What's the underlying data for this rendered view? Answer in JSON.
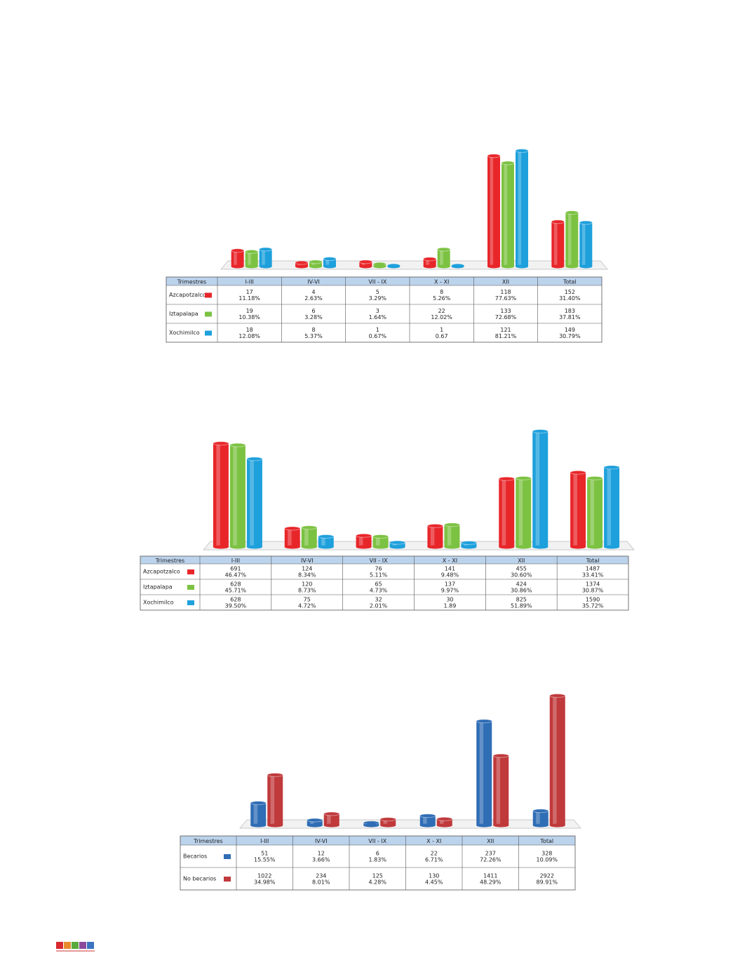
{
  "chart_data": [
    {
      "type": "bar",
      "header": "Trimestres",
      "categories": [
        "I-III",
        "IV-VI",
        "VII - IX",
        "X - XI",
        "XII",
        "Total"
      ],
      "series": [
        {
          "name": "Azcapotzalco",
          "color": "#e8262a",
          "counts": [
            17,
            4,
            5,
            8,
            118,
            152
          ],
          "values": [
            11.18,
            2.63,
            3.29,
            5.26,
            77.63,
            31.4
          ],
          "value_labels": [
            "11.18%",
            "2.63%",
            "3.29%",
            "5.26%",
            "77.63%",
            "31.40%"
          ]
        },
        {
          "name": "Iztapalapa",
          "color": "#7cc242",
          "counts": [
            19,
            6,
            3,
            22,
            133,
            183
          ],
          "values": [
            10.38,
            3.28,
            1.64,
            12.02,
            72.68,
            37.81
          ],
          "value_labels": [
            "10.38%",
            "3.28%",
            "1.64%",
            "12.02%",
            "72.68%",
            "37.81%"
          ]
        },
        {
          "name": "Xochimilco",
          "color": "#1ea0dc",
          "counts": [
            18,
            8,
            1,
            1,
            121,
            149
          ],
          "values": [
            12.08,
            5.37,
            0.67,
            0.67,
            81.21,
            30.79
          ],
          "value_labels": [
            "12.08%",
            "5.37%",
            "0.67%",
            "0.67",
            "81.21%",
            "30.79%"
          ]
        }
      ]
    },
    {
      "type": "bar",
      "header": "Trimestres",
      "categories": [
        "I-III",
        "IV-VI",
        "VII - IX",
        "X - XI",
        "XII",
        "Total"
      ],
      "series": [
        {
          "name": "Azcapotzalco",
          "color": "#e8262a",
          "counts": [
            691,
            124,
            76,
            141,
            455,
            1487
          ],
          "values": [
            46.47,
            8.34,
            5.11,
            9.48,
            30.6,
            33.41
          ],
          "value_labels": [
            "46.47%",
            "8.34%",
            "5.11%",
            "9.48%",
            "30.60%",
            "33.41%"
          ]
        },
        {
          "name": "Iztapalapa",
          "color": "#7cc242",
          "counts": [
            628,
            120,
            65,
            137,
            424,
            1374
          ],
          "values": [
            45.71,
            8.73,
            4.73,
            9.97,
            30.86,
            30.87
          ],
          "value_labels": [
            "45.71%",
            "8.73%",
            "4.73%",
            "9.97%",
            "30.86%",
            "30.87%"
          ]
        },
        {
          "name": "Xochimilco",
          "color": "#1ea0dc",
          "counts": [
            628,
            75,
            32,
            30,
            825,
            1590
          ],
          "values": [
            39.5,
            4.72,
            2.01,
            1.89,
            51.89,
            35.72
          ],
          "value_labels": [
            "39.50%",
            "4.72%",
            "2.01%",
            "1.89",
            "51.89%",
            "35.72%"
          ]
        }
      ]
    },
    {
      "type": "bar",
      "header": "Trimestres",
      "categories": [
        "I-III",
        "IV-VI",
        "VII - IX",
        "X - XI",
        "XII",
        "Total"
      ],
      "series": [
        {
          "name": "Becarios",
          "color": "#2f6db5",
          "counts": [
            51,
            12,
            6,
            22,
            237,
            328
          ],
          "values": [
            15.55,
            3.66,
            1.83,
            6.71,
            72.26,
            10.09
          ],
          "value_labels": [
            "15.55%",
            "3.66%",
            "1.83%",
            "6.71%",
            "72.26%",
            "10.09%"
          ]
        },
        {
          "name": "No becarios",
          "color": "#c0393b",
          "counts": [
            1022,
            234,
            125,
            130,
            1411,
            2922
          ],
          "values": [
            34.98,
            8.01,
            4.28,
            4.45,
            48.29,
            89.91
          ],
          "value_labels": [
            "34.98%",
            "8.01%",
            "4.28%",
            "4.45%",
            "48.29%",
            "89.91%"
          ]
        }
      ]
    }
  ]
}
